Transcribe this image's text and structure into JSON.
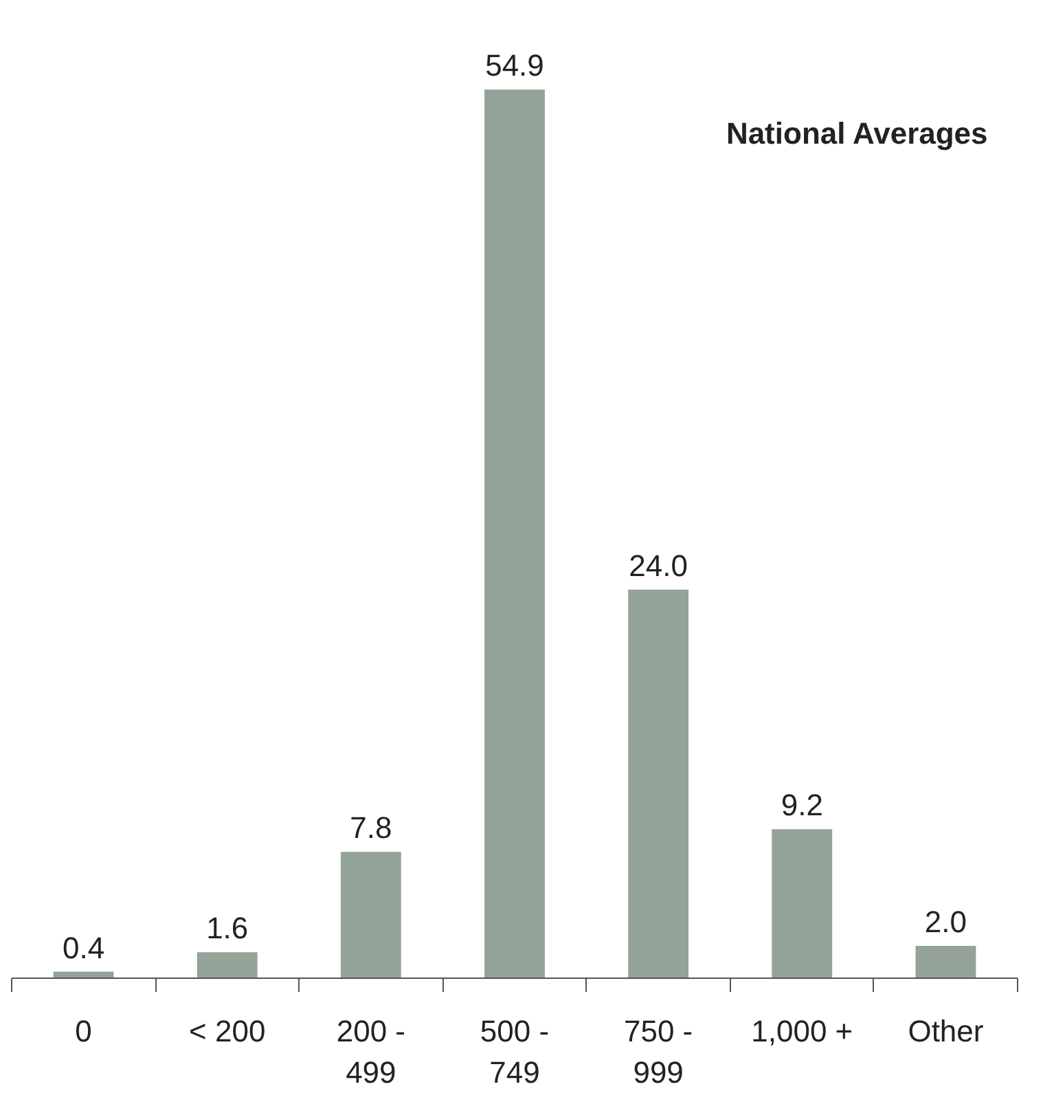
{
  "chart_data": {
    "type": "bar",
    "title": "National Averages",
    "categories": [
      "0",
      "< 200",
      "200 -\n499",
      "500 -\n749",
      "750 -\n999",
      "1,000 +",
      "Other"
    ],
    "values": [
      0.4,
      1.6,
      7.8,
      54.9,
      24.0,
      9.2,
      2.0
    ],
    "value_labels": [
      "0.4",
      "1.6",
      "7.8",
      "54.9",
      "24.0",
      "9.2",
      "2.0"
    ],
    "color": "#93a397",
    "grid": false
  }
}
